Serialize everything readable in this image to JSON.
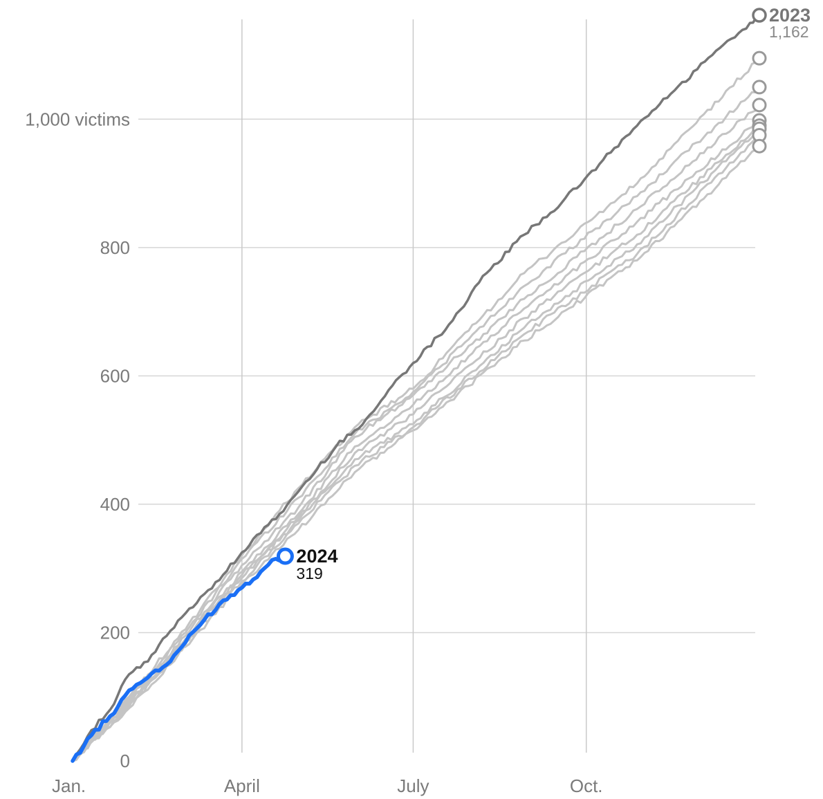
{
  "chart_data": {
    "type": "line",
    "title": "",
    "xlabel": "",
    "ylabel": "",
    "x_ticks": [
      "Jan.",
      "April",
      "July",
      "Oct."
    ],
    "x_tick_days": [
      0,
      90,
      181,
      273
    ],
    "year_days": 365,
    "ylim": [
      0,
      1162
    ],
    "y_ticks": [
      0,
      200,
      400,
      600,
      800,
      1000
    ],
    "y_tick_labels": [
      "0",
      "200",
      "400",
      "600",
      "800",
      "1,000 victims"
    ],
    "grid": true,
    "colors": {
      "highlight": "#1a6ff5",
      "previous_record": "#777777",
      "other_years": "#c4c4c4",
      "end_marker": "#999999"
    },
    "series": [
      {
        "name": "2024",
        "display_value": "319",
        "kind": "highlight",
        "points": [
          [
            0,
            0
          ],
          [
            10,
            40
          ],
          [
            20,
            70
          ],
          [
            30,
            110
          ],
          [
            40,
            130
          ],
          [
            50,
            150
          ],
          [
            60,
            185
          ],
          [
            70,
            220
          ],
          [
            80,
            250
          ],
          [
            90,
            270
          ],
          [
            100,
            295
          ],
          [
            108,
            315
          ],
          [
            113,
            319
          ]
        ]
      },
      {
        "name": "2023",
        "display_value": "1,162",
        "kind": "previous_record",
        "points": [
          [
            0,
            0
          ],
          [
            10,
            48
          ],
          [
            20,
            80
          ],
          [
            30,
            135
          ],
          [
            40,
            155
          ],
          [
            50,
            195
          ],
          [
            60,
            230
          ],
          [
            70,
            260
          ],
          [
            80,
            290
          ],
          [
            90,
            325
          ],
          [
            100,
            355
          ],
          [
            110,
            385
          ],
          [
            120,
            420
          ],
          [
            130,
            455
          ],
          [
            140,
            490
          ],
          [
            150,
            515
          ],
          [
            160,
            545
          ],
          [
            170,
            585
          ],
          [
            181,
            620
          ],
          [
            200,
            680
          ],
          [
            220,
            760
          ],
          [
            240,
            820
          ],
          [
            260,
            870
          ],
          [
            280,
            930
          ],
          [
            300,
            990
          ],
          [
            320,
            1045
          ],
          [
            340,
            1100
          ],
          [
            360,
            1150
          ],
          [
            365,
            1162
          ]
        ]
      },
      {
        "name": "",
        "kind": "other_years",
        "points": [
          [
            0,
            0
          ],
          [
            30,
            100
          ],
          [
            60,
            205
          ],
          [
            90,
            320
          ],
          [
            120,
            425
          ],
          [
            150,
            520
          ],
          [
            181,
            580
          ],
          [
            240,
            760
          ],
          [
            300,
            900
          ],
          [
            365,
            1095
          ]
        ]
      },
      {
        "name": "",
        "kind": "other_years",
        "points": [
          [
            0,
            0
          ],
          [
            30,
            98
          ],
          [
            60,
            200
          ],
          [
            90,
            315
          ],
          [
            120,
            410
          ],
          [
            150,
            510
          ],
          [
            181,
            575
          ],
          [
            240,
            740
          ],
          [
            300,
            880
          ],
          [
            365,
            1050
          ]
        ]
      },
      {
        "name": "",
        "kind": "other_years",
        "points": [
          [
            0,
            0
          ],
          [
            30,
            95
          ],
          [
            60,
            195
          ],
          [
            90,
            305
          ],
          [
            120,
            395
          ],
          [
            150,
            505
          ],
          [
            181,
            570
          ],
          [
            240,
            720
          ],
          [
            300,
            860
          ],
          [
            365,
            1022
          ]
        ]
      },
      {
        "name": "",
        "kind": "other_years",
        "points": [
          [
            0,
            0
          ],
          [
            30,
            92
          ],
          [
            60,
            190
          ],
          [
            90,
            295
          ],
          [
            120,
            385
          ],
          [
            150,
            490
          ],
          [
            181,
            555
          ],
          [
            240,
            705
          ],
          [
            300,
            840
          ],
          [
            365,
            998
          ]
        ]
      },
      {
        "name": "",
        "kind": "other_years",
        "points": [
          [
            0,
            0
          ],
          [
            30,
            90
          ],
          [
            60,
            188
          ],
          [
            90,
            290
          ],
          [
            120,
            380
          ],
          [
            150,
            480
          ],
          [
            181,
            540
          ],
          [
            240,
            690
          ],
          [
            300,
            820
          ],
          [
            365,
            990
          ]
        ]
      },
      {
        "name": "",
        "kind": "other_years",
        "points": [
          [
            0,
            0
          ],
          [
            30,
            88
          ],
          [
            60,
            185
          ],
          [
            90,
            285
          ],
          [
            120,
            375
          ],
          [
            150,
            470
          ],
          [
            181,
            525
          ],
          [
            240,
            675
          ],
          [
            300,
            805
          ],
          [
            365,
            985
          ]
        ]
      },
      {
        "name": "",
        "kind": "other_years",
        "points": [
          [
            0,
            0
          ],
          [
            30,
            85
          ],
          [
            60,
            182
          ],
          [
            90,
            280
          ],
          [
            120,
            370
          ],
          [
            150,
            460
          ],
          [
            181,
            520
          ],
          [
            240,
            665
          ],
          [
            300,
            790
          ],
          [
            365,
            975
          ]
        ]
      },
      {
        "name": "",
        "kind": "other_years",
        "points": [
          [
            0,
            0
          ],
          [
            30,
            82
          ],
          [
            60,
            178
          ],
          [
            90,
            275
          ],
          [
            120,
            360
          ],
          [
            150,
            450
          ],
          [
            181,
            515
          ],
          [
            240,
            655
          ],
          [
            300,
            780
          ],
          [
            365,
            958
          ]
        ]
      }
    ]
  }
}
